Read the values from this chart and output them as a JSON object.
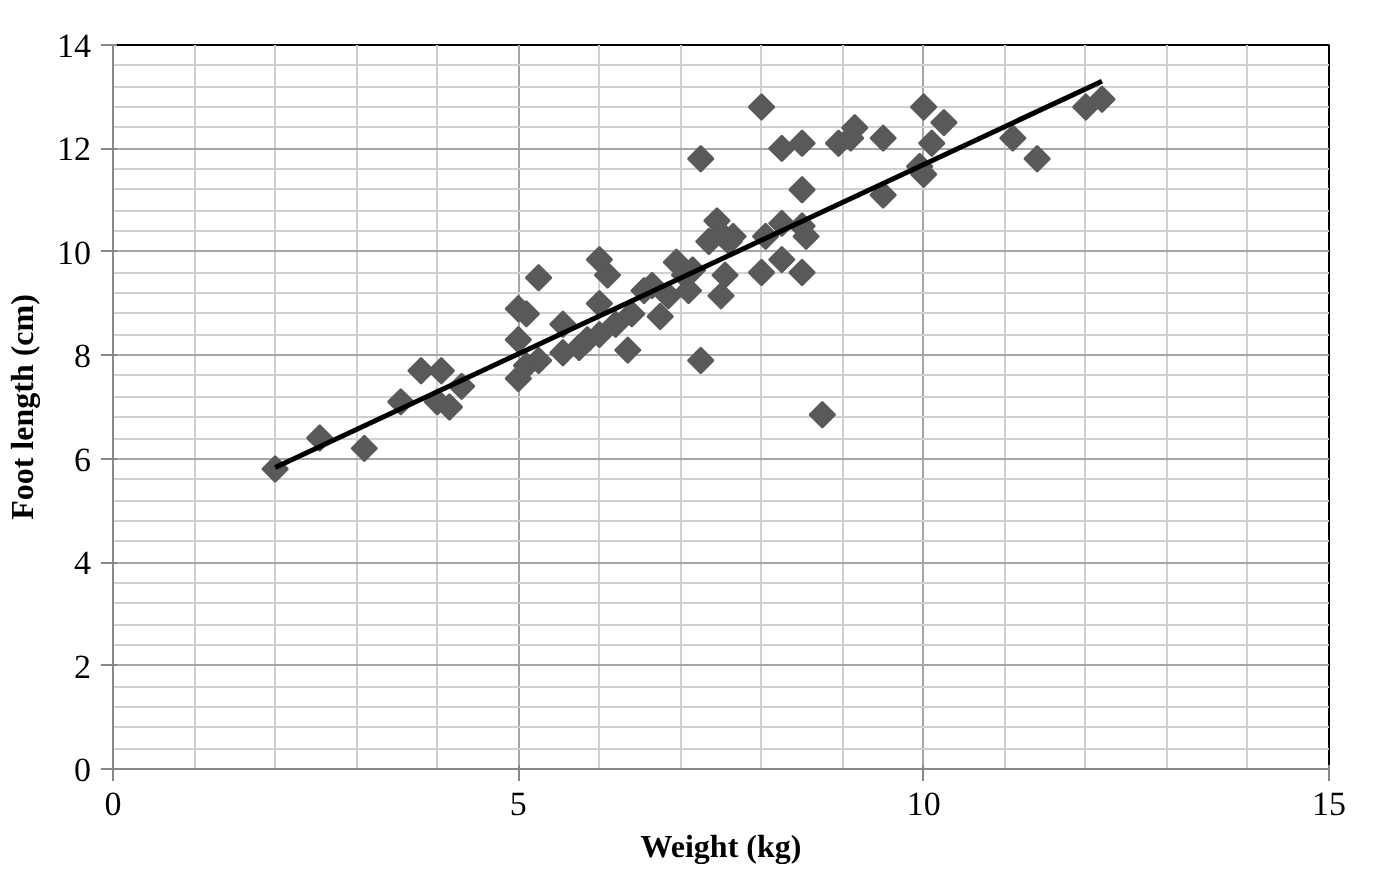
{
  "chart_data": {
    "type": "scatter",
    "xlabel": "Weight (kg)",
    "ylabel": "Foot length (cm)",
    "xlim": [
      0,
      15
    ],
    "ylim": [
      0,
      14
    ],
    "xticks": [
      0,
      5,
      10,
      15
    ],
    "yticks": [
      0,
      2,
      4,
      6,
      8,
      10,
      12,
      14
    ],
    "grid": true,
    "marker": "diamond",
    "series": [
      {
        "color": "#595959",
        "x": [
          2.0,
          2.55,
          3.1,
          3.55,
          3.8,
          4.05,
          4.0,
          4.15,
          4.3,
          5.0,
          5.1,
          5.0,
          5.0,
          5.1,
          5.25,
          5.25,
          5.55,
          5.55,
          5.75,
          5.85,
          6.0,
          6.1,
          6.0,
          6.0,
          6.2,
          6.35,
          6.4,
          6.55,
          6.65,
          6.75,
          6.85,
          6.95,
          7.05,
          7.1,
          7.15,
          7.25,
          7.25,
          7.35,
          7.45,
          7.5,
          7.6,
          7.5,
          7.55,
          7.65,
          8.0,
          8.0,
          8.05,
          8.25,
          8.25,
          8.25,
          8.5,
          8.5,
          8.5,
          8.55,
          8.5,
          8.75,
          8.95,
          9.15,
          9.1,
          9.5,
          9.5,
          10.0,
          9.95,
          10.0,
          10.1,
          10.25,
          11.1,
          11.4,
          12.0,
          12.2
        ],
        "values": [
          5.8,
          6.4,
          6.2,
          7.1,
          7.7,
          7.7,
          7.1,
          7.0,
          7.4,
          8.9,
          8.8,
          8.3,
          7.55,
          7.8,
          7.9,
          9.5,
          8.6,
          8.05,
          8.15,
          8.3,
          9.85,
          9.55,
          9.0,
          8.4,
          8.6,
          8.1,
          8.8,
          9.25,
          9.35,
          8.75,
          9.15,
          9.8,
          9.55,
          9.25,
          9.65,
          11.8,
          7.9,
          10.2,
          10.6,
          10.35,
          10.2,
          9.15,
          9.55,
          10.3,
          12.8,
          9.6,
          10.3,
          10.55,
          9.85,
          12.0,
          12.1,
          11.2,
          10.5,
          10.3,
          9.6,
          6.85,
          12.1,
          12.4,
          12.2,
          12.2,
          11.1,
          12.8,
          11.65,
          11.5,
          12.1,
          12.5,
          12.2,
          11.8,
          12.8,
          12.95
        ]
      },
      {
        "type": "line",
        "color": "#000000",
        "marker": "none",
        "line_style": "solid",
        "x": [
          2.0,
          12.2
        ],
        "values": [
          5.83,
          13.3
        ]
      }
    ]
  }
}
